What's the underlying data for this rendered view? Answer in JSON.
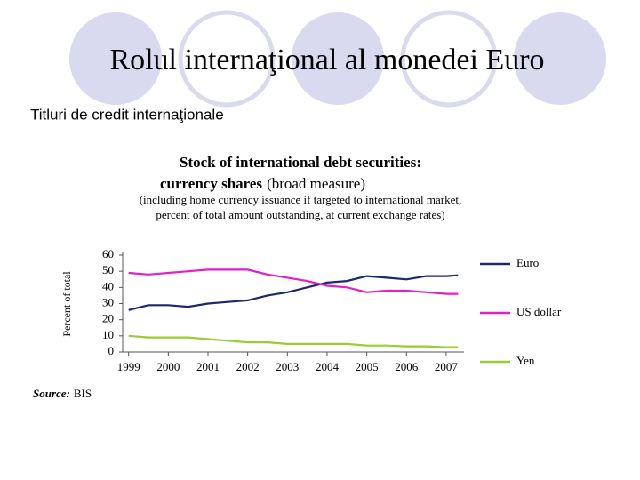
{
  "slide": {
    "title": "Rolul internaţional al monedei Euro",
    "subtitle": "Titluri de credit internaţionale"
  },
  "chart_data": {
    "type": "line",
    "title": [
      "Stock of international debt securities:",
      "currency shares"
    ],
    "title_note": "(broad measure)",
    "subtitle": [
      "(including home currency issuance if targeted to international market,",
      "percent of total amount outstanding, at current exchange rates)"
    ],
    "y_label": "Percent of total",
    "source_label": "Source:",
    "source": "BIS",
    "x": [
      1999,
      1999.5,
      2000,
      2000.5,
      2001,
      2001.5,
      2002,
      2002.5,
      2003,
      2003.5,
      2004,
      2004.5,
      2005,
      2005.5,
      2006,
      2006.5,
      2007,
      2007.3
    ],
    "series": [
      {
        "name": "Euro",
        "color": "#1a2a6c",
        "values": [
          26,
          29,
          29,
          28,
          30,
          31,
          32,
          35,
          37,
          40,
          43,
          44,
          47,
          46,
          45,
          47,
          47,
          47.5
        ]
      },
      {
        "name": "US dollar",
        "color": "#e020c8",
        "values": [
          49,
          48,
          49,
          50,
          51,
          51,
          51,
          48,
          46,
          44,
          41,
          40,
          37,
          38,
          38,
          37,
          36,
          36
        ]
      },
      {
        "name": "Yen",
        "color": "#9acd32",
        "values": [
          10,
          9,
          9,
          9,
          8,
          7,
          6,
          6,
          5,
          5,
          5,
          5,
          4,
          4,
          3.5,
          3.5,
          3,
          3
        ]
      }
    ],
    "xlim": [
      1998.85,
      2007.45
    ],
    "xticks": [
      1999,
      2000,
      2001,
      2002,
      2003,
      2004,
      2005,
      2006,
      2007
    ],
    "ylim": [
      0,
      60
    ],
    "yticks": [
      0,
      10,
      20,
      30,
      40,
      50,
      60
    ],
    "grid": false,
    "legend": "right"
  }
}
